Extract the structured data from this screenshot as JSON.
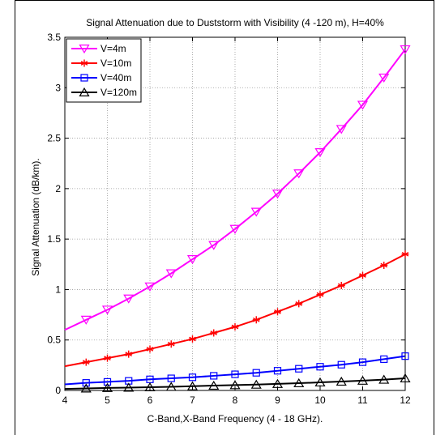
{
  "chart_data": {
    "type": "line",
    "title": "Signal Attenuation due to Duststorm with Visibility (4 -120 m), H=40%",
    "xlabel": "C-Band,X-Band Frequency (4 - 18 GHz).",
    "ylabel": "Signal Attenuation (dB/km).",
    "xlim": [
      4,
      12
    ],
    "ylim": [
      0,
      3.5
    ],
    "xticks": [
      "4",
      "5",
      "6",
      "7",
      "8",
      "9",
      "10",
      "11",
      "12"
    ],
    "yticks": [
      "0",
      "0.5",
      "1",
      "1.5",
      "2",
      "2.5",
      "3",
      "3.5"
    ],
    "grid": true,
    "legend_position": "top-left",
    "x": [
      4,
      4.5,
      5,
      5.5,
      6,
      6.5,
      7,
      7.5,
      8,
      8.5,
      9,
      9.5,
      10,
      10.5,
      11,
      11.5,
      12
    ],
    "series": [
      {
        "name": "V=4m",
        "color": "#ff00ff",
        "marker": "triangle-down",
        "values": [
          0.6,
          0.7,
          0.8,
          0.91,
          1.03,
          1.16,
          1.3,
          1.44,
          1.6,
          1.77,
          1.95,
          2.15,
          2.36,
          2.59,
          2.83,
          3.1,
          3.38
        ]
      },
      {
        "name": "V=10m",
        "color": "#ff0000",
        "marker": "asterisk",
        "values": [
          0.24,
          0.28,
          0.32,
          0.36,
          0.41,
          0.46,
          0.51,
          0.57,
          0.63,
          0.7,
          0.78,
          0.86,
          0.95,
          1.04,
          1.14,
          1.24,
          1.35
        ]
      },
      {
        "name": "V=40m",
        "color": "#0000ff",
        "marker": "square",
        "values": [
          0.06,
          0.075,
          0.085,
          0.095,
          0.11,
          0.12,
          0.13,
          0.145,
          0.16,
          0.175,
          0.195,
          0.215,
          0.235,
          0.255,
          0.28,
          0.31,
          0.34
        ]
      },
      {
        "name": "V=120m",
        "color": "#000000",
        "marker": "triangle-up",
        "values": [
          0.015,
          0.02,
          0.025,
          0.028,
          0.032,
          0.036,
          0.042,
          0.048,
          0.053,
          0.058,
          0.065,
          0.072,
          0.08,
          0.088,
          0.097,
          0.107,
          0.12
        ]
      }
    ]
  }
}
